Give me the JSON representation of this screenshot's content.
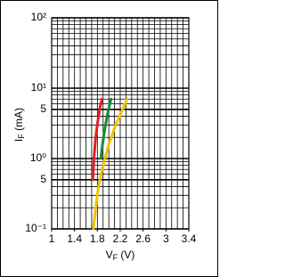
{
  "chart_data": {
    "type": "line",
    "ylabel": [
      "I",
      "F",
      " (mA)"
    ],
    "xlabel": [
      "V",
      "F",
      " (V)"
    ],
    "log_y": true,
    "grid": true,
    "xlim": [
      1,
      3.4
    ],
    "xticks": [
      1,
      1.4,
      1.8,
      2.2,
      2.6,
      3,
      3.4
    ],
    "ylim": [
      0.1,
      100
    ],
    "yticks": [
      {
        "value": 0.1,
        "label": "10⁻¹"
      },
      {
        "value": 0.5,
        "label": "5"
      },
      {
        "value": 1,
        "label": "10⁰"
      },
      5,
      {
        "value": 10,
        "label": "10¹"
      },
      {
        "value": 100,
        "label": "10²"
      }
    ],
    "series": [
      {
        "color": "#e0202a",
        "x": [
          1.72,
          1.74,
          1.77,
          1.81,
          1.85,
          1.88
        ],
        "values": [
          0.5,
          1,
          2,
          3.5,
          5.5,
          7
        ]
      },
      {
        "color": "#1a8a3a",
        "x": [
          1.86,
          1.89,
          1.93,
          1.97,
          2.01,
          2.04
        ],
        "values": [
          1,
          1.6,
          2.6,
          4,
          5.6,
          7
        ]
      },
      {
        "color": "#f2c200",
        "x": [
          1.73,
          1.77,
          1.82,
          1.9,
          2.0,
          2.12,
          2.24,
          2.32
        ],
        "values": [
          0.1,
          0.2,
          0.4,
          0.8,
          1.6,
          3,
          5,
          7
        ]
      }
    ]
  }
}
